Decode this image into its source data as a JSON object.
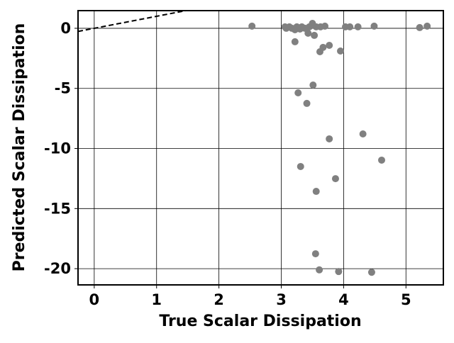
{
  "chart_data": {
    "type": "scatter",
    "xlabel": "True Scalar Dissipation",
    "ylabel": "Predicted Scalar Dissipation",
    "xlim": [
      -0.26,
      5.6
    ],
    "ylim": [
      -21.35,
      1.47
    ],
    "xticks": [
      0,
      1,
      2,
      3,
      4,
      5
    ],
    "yticks": [
      0,
      -5,
      -10,
      -15,
      -20
    ],
    "grid": true,
    "series": [
      {
        "color": "#808080",
        "x": [
          2.53,
          3.06,
          3.08,
          3.13,
          3.17,
          3.22,
          3.25,
          3.3,
          3.33,
          3.38,
          3.43,
          3.45,
          3.5,
          3.53,
          3.56,
          3.63,
          3.7,
          3.22,
          3.62,
          3.67,
          3.77,
          3.95,
          4.03,
          4.1,
          4.23,
          4.49,
          5.22,
          5.34,
          3.51,
          3.27,
          3.41,
          3.77,
          4.31,
          3.31,
          4.61,
          3.87,
          3.56,
          3.55,
          3.61,
          3.92,
          4.45
        ],
        "values": [
          0.18,
          0.12,
          0,
          0.12,
          0,
          -0.12,
          0.12,
          -0.06,
          0.12,
          0,
          -0.41,
          0.12,
          0.41,
          -0.59,
          0.12,
          0.12,
          0.18,
          -1.12,
          -1.95,
          -1.59,
          -1.42,
          -1.89,
          0.12,
          0.12,
          0.12,
          0.18,
          0.06,
          0.18,
          -4.72,
          -5.37,
          -6.25,
          -9.2,
          -8.79,
          -11.5,
          -10.97,
          -12.51,
          -13.57,
          -18.76,
          -20.1,
          -20.24,
          -20.3
        ]
      },
      {
        "type": "line",
        "color": "#000000",
        "dashed": true,
        "x": [
          -0.26,
          1.47
        ],
        "values": [
          -0.26,
          1.47
        ]
      }
    ]
  }
}
